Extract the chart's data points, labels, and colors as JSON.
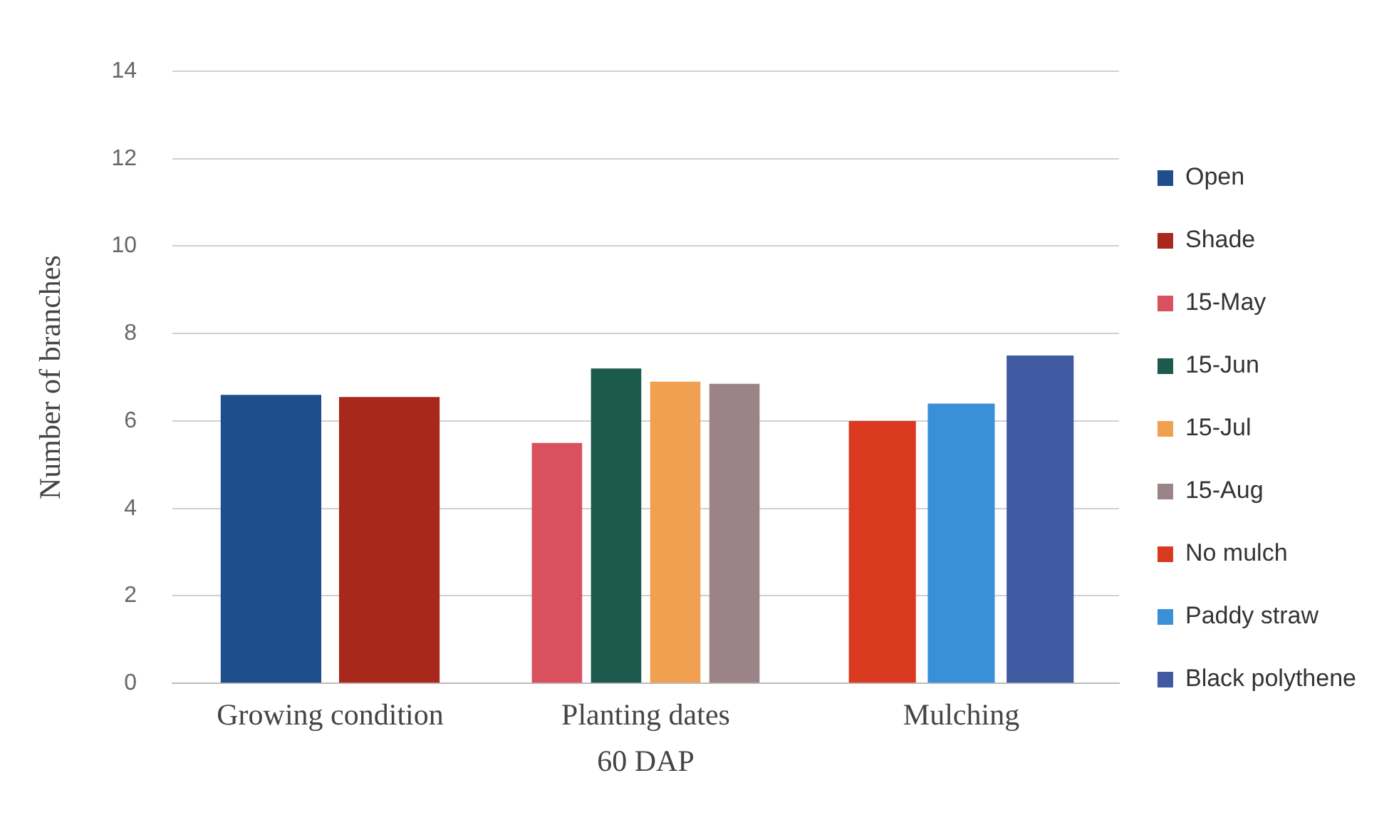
{
  "chart_data": {
    "type": "bar",
    "xlabel": "60 DAP",
    "ylabel": "Number of branches",
    "categories": [
      "Growing condition",
      "Planting dates",
      "Mulching"
    ],
    "series": [
      {
        "name": "Open",
        "color": "#1f4e8c",
        "values": [
          6.6,
          null,
          null
        ]
      },
      {
        "name": "Shade",
        "color": "#a8281c",
        "values": [
          6.55,
          null,
          null
        ]
      },
      {
        "name": "15-May",
        "color": "#d9505e",
        "values": [
          null,
          5.5,
          null
        ]
      },
      {
        "name": "15-Jun",
        "color": "#1b5a4c",
        "values": [
          null,
          7.2,
          null
        ]
      },
      {
        "name": "15-Jul",
        "color": "#f0a050",
        "values": [
          null,
          6.9,
          null
        ]
      },
      {
        "name": "15-Aug",
        "color": "#9a8488",
        "values": [
          null,
          6.85,
          null
        ]
      },
      {
        "name": "No mulch",
        "color": "#d93a1f",
        "values": [
          null,
          null,
          6.0
        ]
      },
      {
        "name": "Paddy straw",
        "color": "#3a90d8",
        "values": [
          null,
          null,
          6.4
        ]
      },
      {
        "name": "Black polythene",
        "color": "#3f5aa0",
        "values": [
          null,
          null,
          7.5
        ]
      }
    ],
    "ylim": [
      0,
      14
    ],
    "yticks": [
      0,
      2,
      4,
      6,
      8,
      10,
      12,
      14
    ],
    "grid": "y",
    "legend": "right"
  }
}
